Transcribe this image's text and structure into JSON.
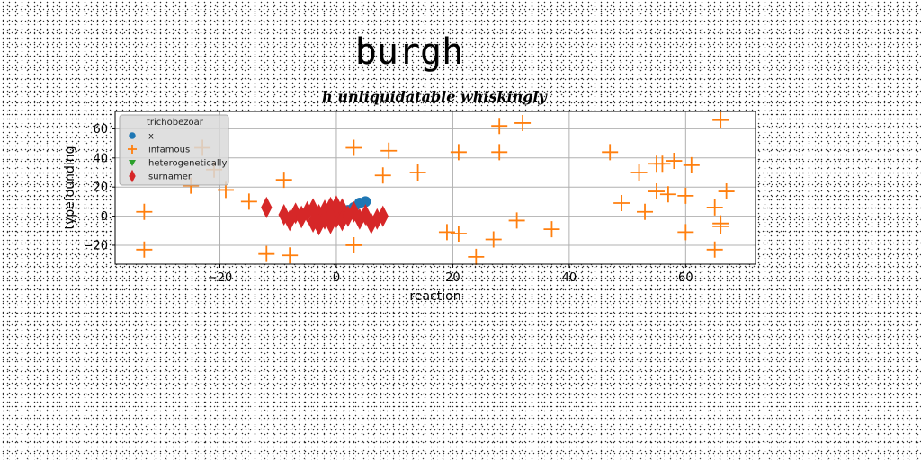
{
  "chart_data": {
    "type": "scatter",
    "suptitle": "burgh",
    "title": "h unliquidatable whiskingly",
    "xlabel": "reaction",
    "ylabel": "typefounding",
    "xlim": [
      -38,
      72
    ],
    "ylim": [
      -33,
      72
    ],
    "xticks": [
      -20,
      0,
      20,
      40,
      60
    ],
    "yticks": [
      -20,
      0,
      20,
      40,
      60
    ],
    "grid": true,
    "legend": {
      "placement": "upper-left",
      "title": "trichobezoar"
    },
    "series": [
      {
        "name": "x",
        "color": "#1f77b4",
        "marker": "circle",
        "points": [
          [
            2,
            4
          ],
          [
            3,
            6
          ],
          [
            4,
            9
          ],
          [
            5,
            10
          ],
          [
            3,
            2
          ],
          [
            1,
            1
          ]
        ]
      },
      {
        "name": "infamous",
        "color": "#ff7f0e",
        "marker": "plus",
        "points": [
          [
            -33,
            3
          ],
          [
            -33,
            -23
          ],
          [
            -25,
            21
          ],
          [
            -23,
            47
          ],
          [
            -21,
            32
          ],
          [
            -19,
            18
          ],
          [
            -15,
            10
          ],
          [
            -12,
            -26
          ],
          [
            -9,
            25
          ],
          [
            -8,
            -27
          ],
          [
            3,
            47
          ],
          [
            3,
            -20
          ],
          [
            8,
            28
          ],
          [
            9,
            45
          ],
          [
            14,
            30
          ],
          [
            19,
            -11
          ],
          [
            21,
            44
          ],
          [
            21,
            -12
          ],
          [
            24,
            -28
          ],
          [
            27,
            -16
          ],
          [
            28,
            62
          ],
          [
            28,
            44
          ],
          [
            31,
            -3
          ],
          [
            32,
            64
          ],
          [
            37,
            -9
          ],
          [
            47,
            44
          ],
          [
            49,
            9
          ],
          [
            52,
            30
          ],
          [
            53,
            3
          ],
          [
            55,
            36
          ],
          [
            55,
            17
          ],
          [
            56,
            36
          ],
          [
            57,
            15
          ],
          [
            58,
            38
          ],
          [
            60,
            14
          ],
          [
            60,
            -11
          ],
          [
            61,
            35
          ],
          [
            65,
            6
          ],
          [
            65,
            -23
          ],
          [
            66,
            -5
          ],
          [
            66,
            -7
          ],
          [
            66,
            66
          ],
          [
            67,
            17
          ]
        ]
      },
      {
        "name": "heterogenetically",
        "color": "#2ca02c",
        "marker": "triangle-down",
        "points": []
      },
      {
        "name": "surnamer",
        "color": "#d62728",
        "marker": "diamond",
        "points": [
          [
            -12,
            6
          ],
          [
            -9,
            1
          ],
          [
            -8,
            -3
          ],
          [
            -7,
            2
          ],
          [
            -6,
            -1
          ],
          [
            -5,
            3
          ],
          [
            -4,
            -4
          ],
          [
            -3,
            1
          ],
          [
            -3,
            -6
          ],
          [
            -2,
            4
          ],
          [
            -2,
            -2
          ],
          [
            -1,
            6
          ],
          [
            -1,
            -5
          ],
          [
            0,
            2
          ],
          [
            0,
            -1
          ],
          [
            1,
            5
          ],
          [
            1,
            -3
          ],
          [
            2,
            0
          ],
          [
            3,
            3
          ],
          [
            4,
            -2
          ],
          [
            5,
            1
          ],
          [
            6,
            -5
          ],
          [
            7,
            -2
          ],
          [
            8,
            0
          ],
          [
            -6,
            0
          ],
          [
            -4,
            5
          ],
          [
            0,
            7
          ],
          [
            -1,
            0
          ]
        ]
      }
    ]
  }
}
